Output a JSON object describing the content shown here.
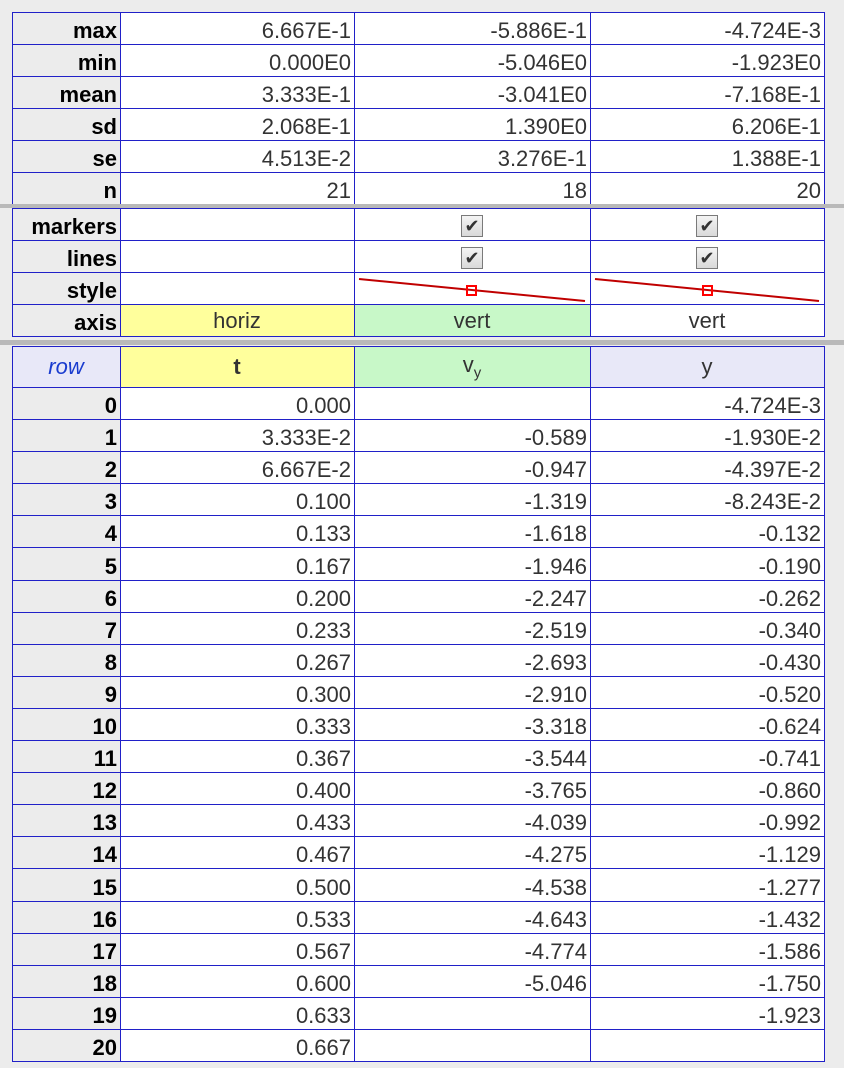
{
  "columns": {
    "t": "t",
    "vy_base": "v",
    "vy_sub": "y",
    "y": "y",
    "row": "row"
  },
  "stats": [
    {
      "label": "max",
      "t": "6.667E-1",
      "vy": "-5.886E-1",
      "y": "-4.724E-3"
    },
    {
      "label": "min",
      "t": "0.000E0",
      "vy": "-5.046E0",
      "y": "-1.923E0"
    },
    {
      "label": "mean",
      "t": "3.333E-1",
      "vy": "-3.041E0",
      "y": "-7.168E-1"
    },
    {
      "label": "sd",
      "t": "2.068E-1",
      "vy": "1.390E0",
      "y": "6.206E-1"
    },
    {
      "label": "se",
      "t": "4.513E-2",
      "vy": "3.276E-1",
      "y": "1.388E-1"
    },
    {
      "label": "n",
      "t": "21",
      "vy": "18",
      "y": "20"
    }
  ],
  "props": {
    "markers_label": "markers",
    "lines_label": "lines",
    "style_label": "style",
    "axis_label": "axis",
    "axis": {
      "t": "horiz",
      "vy": "vert",
      "y": "vert"
    },
    "check_glyph": "✔",
    "style_line_color": "#c00000",
    "style_marker_color": "#ff0000"
  },
  "rows": [
    {
      "row": "0",
      "t": "0.000",
      "vy": "",
      "y": "-4.724E-3"
    },
    {
      "row": "1",
      "t": "3.333E-2",
      "vy": "-0.589",
      "y": "-1.930E-2"
    },
    {
      "row": "2",
      "t": "6.667E-2",
      "vy": "-0.947",
      "y": "-4.397E-2"
    },
    {
      "row": "3",
      "t": "0.100",
      "vy": "-1.319",
      "y": "-8.243E-2"
    },
    {
      "row": "4",
      "t": "0.133",
      "vy": "-1.618",
      "y": "-0.132"
    },
    {
      "row": "5",
      "t": "0.167",
      "vy": "-1.946",
      "y": "-0.190"
    },
    {
      "row": "6",
      "t": "0.200",
      "vy": "-2.247",
      "y": "-0.262"
    },
    {
      "row": "7",
      "t": "0.233",
      "vy": "-2.519",
      "y": "-0.340"
    },
    {
      "row": "8",
      "t": "0.267",
      "vy": "-2.693",
      "y": "-0.430"
    },
    {
      "row": "9",
      "t": "0.300",
      "vy": "-2.910",
      "y": "-0.520"
    },
    {
      "row": "10",
      "t": "0.333",
      "vy": "-3.318",
      "y": "-0.624"
    },
    {
      "row": "11",
      "t": "0.367",
      "vy": "-3.544",
      "y": "-0.741"
    },
    {
      "row": "12",
      "t": "0.400",
      "vy": "-3.765",
      "y": "-0.860"
    },
    {
      "row": "13",
      "t": "0.433",
      "vy": "-4.039",
      "y": "-0.992"
    },
    {
      "row": "14",
      "t": "0.467",
      "vy": "-4.275",
      "y": "-1.129"
    },
    {
      "row": "15",
      "t": "0.500",
      "vy": "-4.538",
      "y": "-1.277"
    },
    {
      "row": "16",
      "t": "0.533",
      "vy": "-4.643",
      "y": "-1.432"
    },
    {
      "row": "17",
      "t": "0.567",
      "vy": "-4.774",
      "y": "-1.586"
    },
    {
      "row": "18",
      "t": "0.600",
      "vy": "-5.046",
      "y": "-1.750"
    },
    {
      "row": "19",
      "t": "0.633",
      "vy": "",
      "y": "-1.923"
    },
    {
      "row": "20",
      "t": "0.667",
      "vy": "",
      "y": ""
    }
  ]
}
